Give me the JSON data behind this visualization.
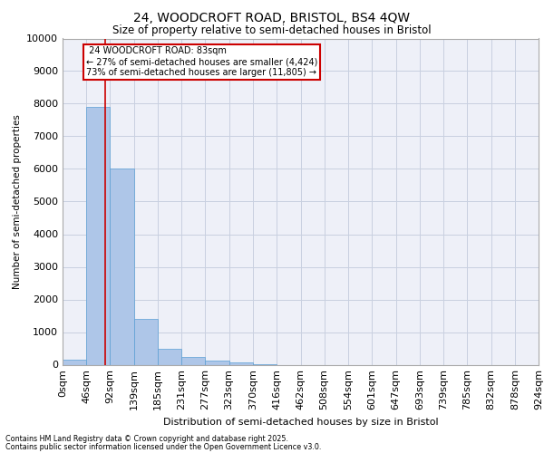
{
  "title_line1": "24, WOODCROFT ROAD, BRISTOL, BS4 4QW",
  "title_line2": "Size of property relative to semi-detached houses in Bristol",
  "xlabel": "Distribution of semi-detached houses by size in Bristol",
  "ylabel": "Number of semi-detached properties",
  "bar_edges": [
    0,
    46,
    92,
    139,
    185,
    231,
    277,
    323,
    370,
    416,
    462,
    508,
    554,
    601,
    647,
    693,
    739,
    785,
    832,
    878,
    924
  ],
  "bar_heights": [
    150,
    7900,
    6000,
    1400,
    500,
    230,
    130,
    60,
    10,
    0,
    0,
    0,
    0,
    0,
    0,
    0,
    0,
    0,
    0,
    0
  ],
  "bar_color": "#aec6e8",
  "bar_edge_color": "#5a9fd4",
  "property_size": 83,
  "property_label": "24 WOODCROFT ROAD: 83sqm",
  "pct_smaller": 27,
  "pct_larger": 73,
  "n_smaller": 4424,
  "n_larger": 11805,
  "red_line_color": "#cc0000",
  "annotation_box_color": "#cc0000",
  "ylim": [
    0,
    10000
  ],
  "yticks": [
    0,
    1000,
    2000,
    3000,
    4000,
    5000,
    6000,
    7000,
    8000,
    9000,
    10000
  ],
  "x_tick_labels": [
    "0sqm",
    "46sqm",
    "92sqm",
    "139sqm",
    "185sqm",
    "231sqm",
    "277sqm",
    "323sqm",
    "370sqm",
    "416sqm",
    "462sqm",
    "508sqm",
    "554sqm",
    "601sqm",
    "647sqm",
    "693sqm",
    "739sqm",
    "785sqm",
    "832sqm",
    "878sqm",
    "924sqm"
  ],
  "grid_color": "#c8d0e0",
  "bg_color": "#eef0f8",
  "footer_line1": "Contains HM Land Registry data © Crown copyright and database right 2025.",
  "footer_line2": "Contains public sector information licensed under the Open Government Licence v3.0."
}
